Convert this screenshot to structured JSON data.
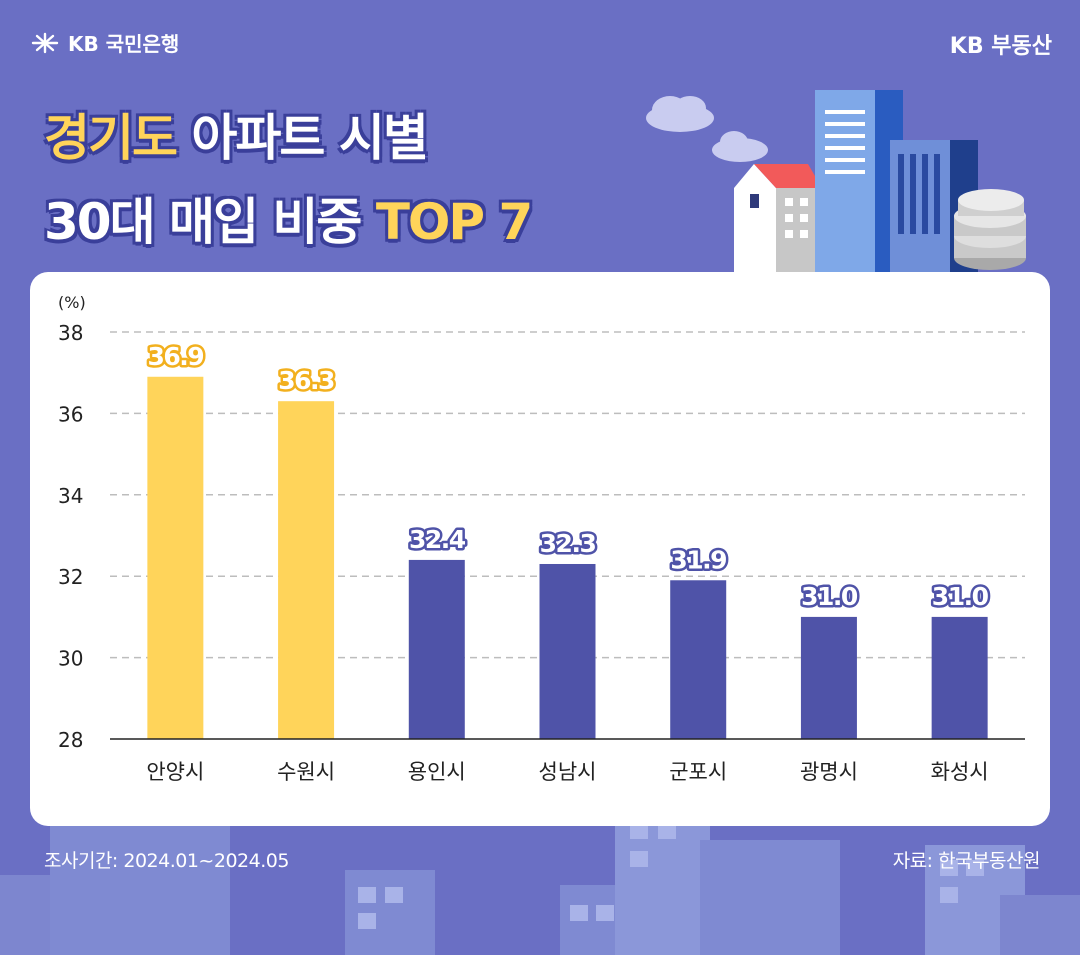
{
  "header": {
    "bank_logo_text": "KB 국민은행",
    "brand_right": "KB 부동산"
  },
  "title": {
    "line1_highlight": "경기도",
    "line1_rest": " 아파트 시별",
    "line2_rest": "30대 매입 비중 ",
    "line2_highlight": "TOP 7"
  },
  "colors": {
    "background": "#6a6fc4",
    "highlight_bar": "#ffd45a",
    "normal_bar": "#4f53a8",
    "title_highlight": "#ffd45a"
  },
  "chart_data": {
    "type": "bar",
    "ylabel": "(%)",
    "ylim": [
      28,
      38
    ],
    "yticks": [
      28,
      30,
      32,
      34,
      36,
      38
    ],
    "grid": true,
    "categories": [
      "안양시",
      "수원시",
      "용인시",
      "성남시",
      "군포시",
      "광명시",
      "화성시"
    ],
    "values": [
      36.9,
      36.3,
      32.4,
      32.3,
      31.9,
      31.0,
      31.0
    ],
    "highlighted": [
      true,
      true,
      false,
      false,
      false,
      false,
      false
    ]
  },
  "footer": {
    "period": "조사기간: 2024.01~2024.05",
    "source": "자료: 한국부동산원"
  }
}
